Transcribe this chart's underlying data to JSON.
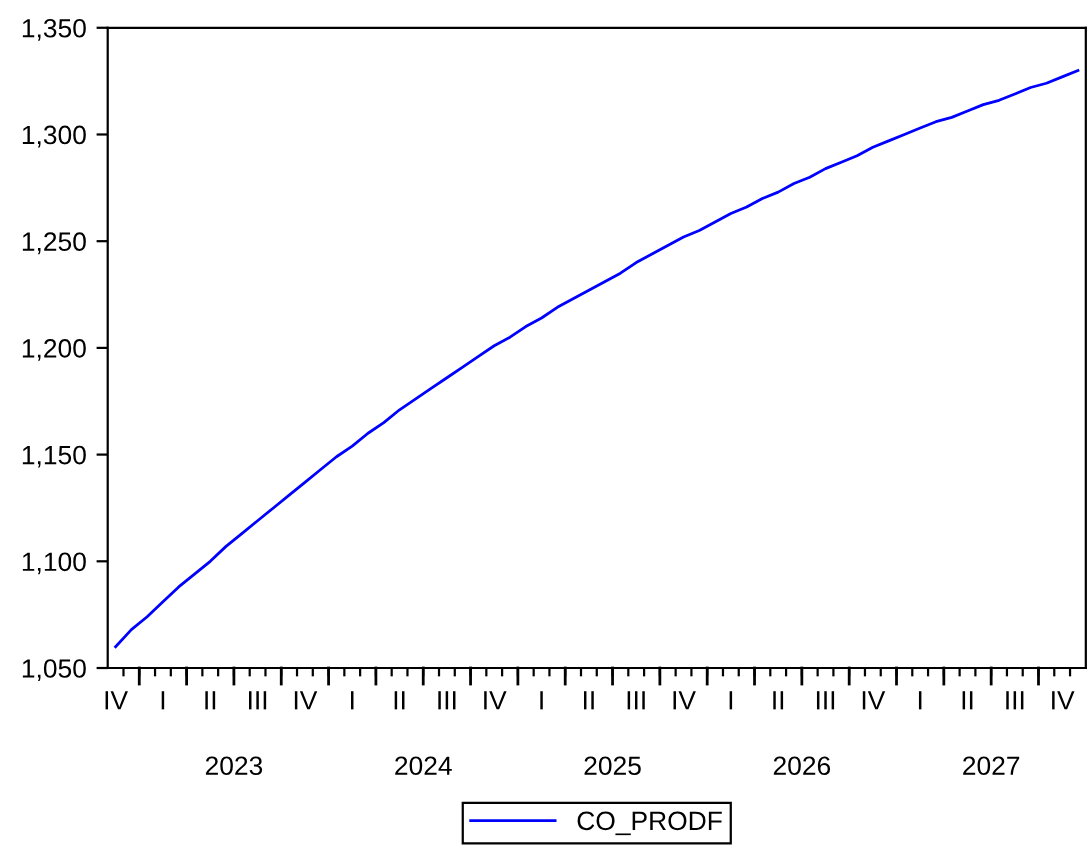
{
  "chart_data": {
    "type": "line",
    "categories": [
      "IV",
      null,
      null,
      "I",
      null,
      null,
      "II",
      null,
      null,
      "III",
      null,
      null,
      "IV",
      null,
      null,
      "I",
      null,
      null,
      "II",
      null,
      null,
      "III",
      null,
      null,
      "IV",
      null,
      null,
      "I",
      null,
      null,
      "II",
      null,
      null,
      "III",
      null,
      null,
      "IV",
      null,
      null,
      "I",
      null,
      null,
      "II",
      null,
      null,
      "III",
      null,
      null,
      "IV",
      null,
      null,
      "I",
      null,
      null,
      "II",
      null,
      null,
      "III",
      null,
      null,
      "IV",
      null
    ],
    "series": [
      {
        "name": "CO_PRODF",
        "color": "#0000ff",
        "values": [
          1060,
          1068,
          1074,
          1081,
          1088,
          1094,
          1100,
          1107,
          1113,
          1119,
          1125,
          1131,
          1137,
          1143,
          1149,
          1154,
          1160,
          1165,
          1171,
          1176,
          1181,
          1186,
          1191,
          1196,
          1201,
          1205,
          1210,
          1214,
          1219,
          1223,
          1227,
          1231,
          1235,
          1240,
          1244,
          1248,
          1252,
          1255,
          1259,
          1263,
          1266,
          1270,
          1273,
          1277,
          1280,
          1284,
          1287,
          1290,
          1294,
          1297,
          1300,
          1303,
          1306,
          1308,
          1311,
          1314,
          1316,
          1319,
          1322,
          1324,
          1327,
          1330
        ]
      }
    ],
    "annotations": [
      "2023",
      "2024",
      "2025",
      "2026",
      "2027"
    ],
    "ylim": [
      1050,
      1350
    ],
    "yticks": [
      {
        "value": 1050,
        "label": "1,050"
      },
      {
        "value": 1100,
        "label": "1,100"
      },
      {
        "value": 1150,
        "label": "1,150"
      },
      {
        "value": 1200,
        "label": "1,200"
      },
      {
        "value": 1250,
        "label": "1,250"
      },
      {
        "value": 1300,
        "label": "1,300"
      },
      {
        "value": 1350,
        "label": "1,350"
      }
    ],
    "legend": "bottom",
    "grid": false,
    "marker": "none",
    "line_style": "solid"
  }
}
